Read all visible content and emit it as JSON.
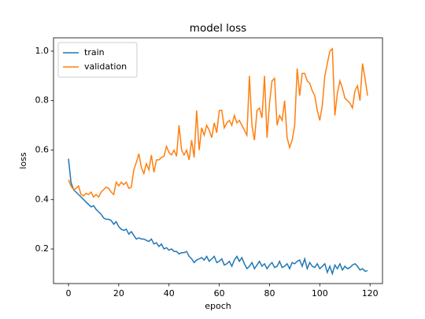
{
  "chart_data": {
    "type": "line",
    "title": "model loss",
    "x_label": "epoch",
    "y_label": "loss",
    "x": [
      0,
      1,
      2,
      3,
      4,
      5,
      6,
      7,
      8,
      9,
      10,
      11,
      12,
      13,
      14,
      15,
      16,
      17,
      18,
      19,
      20,
      21,
      22,
      23,
      24,
      25,
      26,
      27,
      28,
      29,
      30,
      31,
      32,
      33,
      34,
      35,
      36,
      37,
      38,
      39,
      40,
      41,
      42,
      43,
      44,
      45,
      46,
      47,
      48,
      49,
      50,
      51,
      52,
      53,
      54,
      55,
      56,
      57,
      58,
      59,
      60,
      61,
      62,
      63,
      64,
      65,
      66,
      67,
      68,
      69,
      70,
      71,
      72,
      73,
      74,
      75,
      76,
      77,
      78,
      79,
      80,
      81,
      82,
      83,
      84,
      85,
      86,
      87,
      88,
      89,
      90,
      91,
      92,
      93,
      94,
      95,
      96,
      97,
      98,
      99,
      100,
      101,
      102,
      103,
      104,
      105,
      106,
      107,
      108,
      109,
      110,
      111,
      112,
      113,
      114,
      115,
      116,
      117,
      118,
      119
    ],
    "series": [
      {
        "name": "train",
        "color": "#1f77b4",
        "values": [
          0.565,
          0.47,
          0.44,
          0.43,
          0.42,
          0.41,
          0.4,
          0.39,
          0.38,
          0.37,
          0.375,
          0.36,
          0.35,
          0.34,
          0.325,
          0.32,
          0.32,
          0.315,
          0.3,
          0.31,
          0.29,
          0.28,
          0.275,
          0.28,
          0.26,
          0.27,
          0.255,
          0.24,
          0.245,
          0.24,
          0.24,
          0.235,
          0.23,
          0.24,
          0.22,
          0.225,
          0.21,
          0.22,
          0.2,
          0.205,
          0.195,
          0.2,
          0.19,
          0.19,
          0.18,
          0.185,
          0.185,
          0.19,
          0.17,
          0.16,
          0.145,
          0.155,
          0.16,
          0.165,
          0.155,
          0.17,
          0.15,
          0.16,
          0.17,
          0.145,
          0.15,
          0.16,
          0.135,
          0.14,
          0.15,
          0.13,
          0.155,
          0.17,
          0.15,
          0.165,
          0.14,
          0.12,
          0.13,
          0.145,
          0.12,
          0.135,
          0.15,
          0.13,
          0.14,
          0.12,
          0.135,
          0.145,
          0.125,
          0.13,
          0.15,
          0.125,
          0.13,
          0.14,
          0.12,
          0.145,
          0.14,
          0.15,
          0.155,
          0.13,
          0.16,
          0.12,
          0.145,
          0.13,
          0.125,
          0.14,
          0.12,
          0.13,
          0.14,
          0.105,
          0.13,
          0.1,
          0.135,
          0.12,
          0.14,
          0.115,
          0.13,
          0.12,
          0.125,
          0.135,
          0.14,
          0.13,
          0.115,
          0.12,
          0.11,
          0.112
        ]
      },
      {
        "name": "validation",
        "color": "#ff7f0e",
        "values": [
          0.48,
          0.455,
          0.44,
          0.445,
          0.455,
          0.42,
          0.415,
          0.425,
          0.42,
          0.43,
          0.41,
          0.42,
          0.41,
          0.43,
          0.44,
          0.45,
          0.445,
          0.43,
          0.42,
          0.47,
          0.455,
          0.47,
          0.46,
          0.47,
          0.445,
          0.45,
          0.52,
          0.55,
          0.585,
          0.53,
          0.505,
          0.545,
          0.52,
          0.58,
          0.51,
          0.56,
          0.56,
          0.57,
          0.575,
          0.615,
          0.59,
          0.58,
          0.6,
          0.575,
          0.7,
          0.6,
          0.58,
          0.6,
          0.56,
          0.64,
          0.57,
          0.76,
          0.6,
          0.69,
          0.66,
          0.7,
          0.68,
          0.65,
          0.71,
          0.67,
          0.76,
          0.76,
          0.69,
          0.71,
          0.72,
          0.7,
          0.74,
          0.71,
          0.72,
          0.7,
          0.68,
          0.66,
          0.9,
          0.7,
          0.64,
          0.76,
          0.77,
          0.73,
          0.9,
          0.65,
          0.79,
          0.88,
          0.89,
          0.7,
          0.74,
          0.72,
          0.8,
          0.65,
          0.61,
          0.64,
          0.7,
          0.93,
          0.82,
          0.91,
          0.91,
          0.88,
          0.87,
          0.84,
          0.82,
          0.76,
          0.72,
          0.78,
          0.9,
          0.95,
          1.0,
          1.01,
          0.74,
          0.83,
          0.88,
          0.85,
          0.81,
          0.8,
          0.79,
          0.77,
          0.84,
          0.86,
          0.8,
          0.95,
          0.89,
          0.82
        ]
      }
    ],
    "xlim": [
      -5.95,
      124.95
    ],
    "xticks": [
      0,
      20,
      40,
      60,
      80,
      100,
      120
    ],
    "ylim": [
      0.06,
      1.054
    ],
    "yticks": [
      0.2,
      0.4,
      0.6,
      0.8,
      {
        "value": 1,
        "label": "1.0"
      }
    ],
    "legend": "upper left"
  }
}
